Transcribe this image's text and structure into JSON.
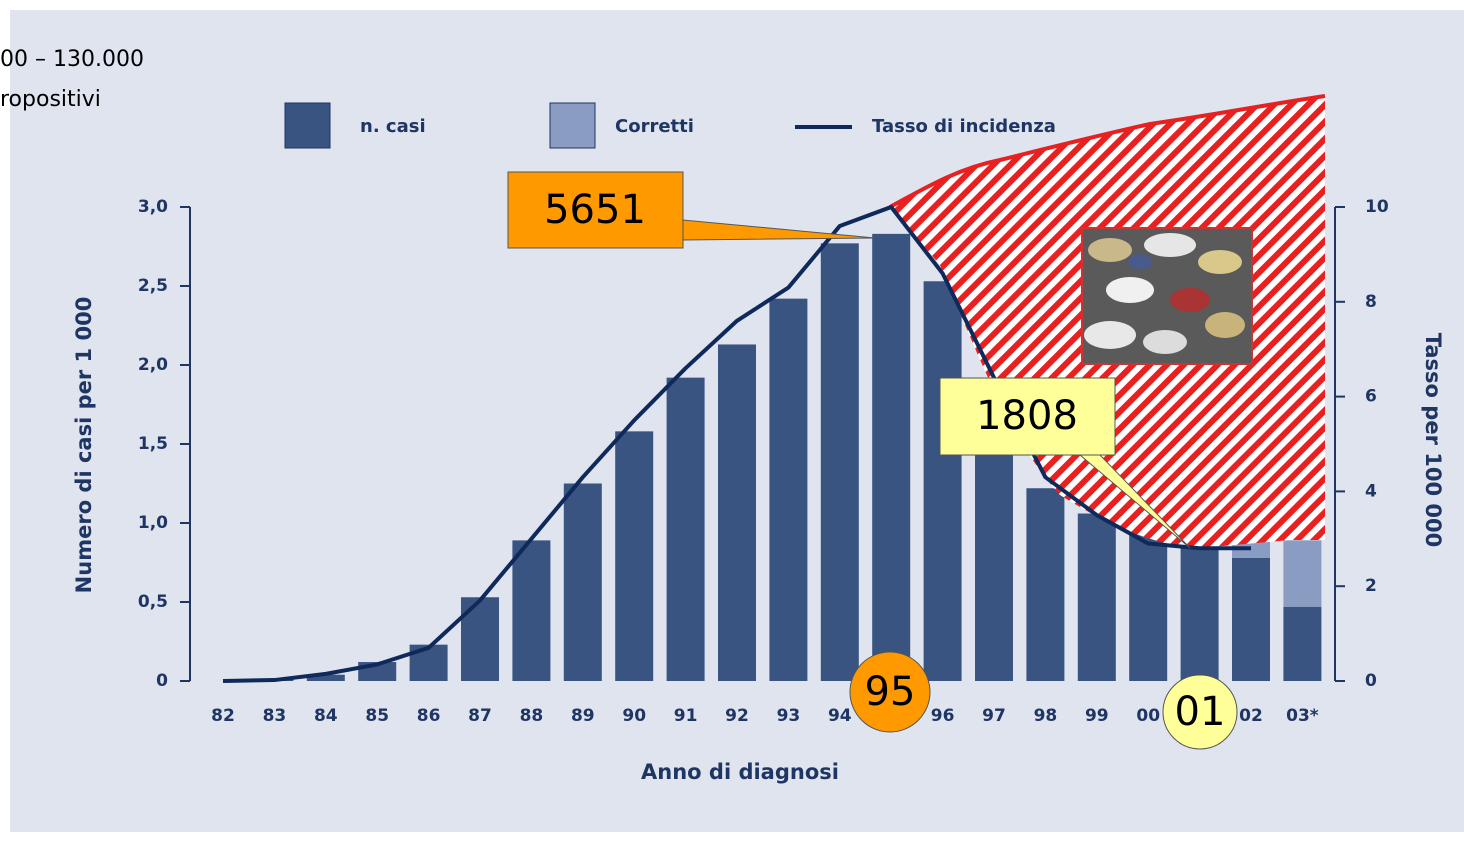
{
  "chart_data": {
    "type": "bar",
    "top_note": [
      "00 – 130.000",
      "ropositivi"
    ],
    "xlabel": "Anno di diagnosi",
    "ylabel": "Numero di casi per 1 000",
    "y2label": "Tasso per 100 000",
    "categories": [
      "82",
      "83",
      "84",
      "85",
      "86",
      "87",
      "88",
      "89",
      "90",
      "91",
      "92",
      "93",
      "94",
      "95",
      "96",
      "97",
      "98",
      "99",
      "00",
      "01",
      "02",
      "03*"
    ],
    "series": [
      {
        "name": "n. casi",
        "color": "#3a5482",
        "values": [
          0,
          0.01,
          0.04,
          0.12,
          0.23,
          0.53,
          0.89,
          1.25,
          1.58,
          1.92,
          2.13,
          2.42,
          2.77,
          2.83,
          2.53,
          1.55,
          1.22,
          1.06,
          0.97,
          0.89,
          0.78,
          0.47
        ]
      },
      {
        "name": "Corretti",
        "color": "#8a9cc2",
        "values": [
          null,
          null,
          null,
          null,
          null,
          null,
          null,
          null,
          null,
          null,
          null,
          null,
          null,
          null,
          null,
          null,
          null,
          null,
          null,
          null,
          0.11,
          0.42
        ]
      },
      {
        "name": "Tasso di incidenza",
        "color": "#0f2a5a",
        "type": "line",
        "axis": "y2",
        "values": [
          0,
          0.02,
          0.15,
          0.35,
          0.7,
          1.7,
          3.0,
          4.3,
          5.5,
          6.6,
          7.6,
          8.3,
          9.6,
          10.0,
          8.6,
          6.4,
          4.3,
          3.5,
          2.9,
          2.8,
          2.8,
          null
        ]
      }
    ],
    "ylim": [
      0,
      3
    ],
    "yticks": [
      {
        "value": 0,
        "label": "0"
      },
      {
        "value": 0.5,
        "label": "0,5"
      },
      {
        "value": 1,
        "label": "1,0"
      },
      {
        "value": 1.5,
        "label": "1,5"
      },
      {
        "value": 2,
        "label": "2,0"
      },
      {
        "value": 2.5,
        "label": "2,5"
      },
      {
        "value": 3,
        "label": "3,0"
      }
    ],
    "y2lim": [
      0,
      10
    ],
    "y2ticks": [
      0,
      2,
      4,
      6,
      8,
      10
    ],
    "annotations": {
      "peak_value": "5651",
      "peak_year": "95",
      "low_value": "1808",
      "low_year": "01"
    }
  }
}
